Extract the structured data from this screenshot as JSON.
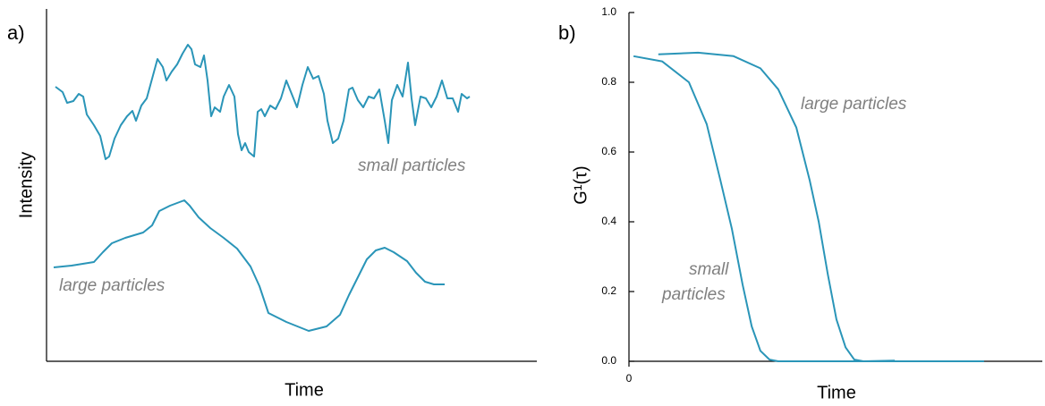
{
  "chart_data": [
    {
      "type": "line",
      "panel_label": "a)",
      "x_label": "Time",
      "y_label": "Intensity",
      "xlim": [
        0,
        548
      ],
      "ylim": [
        0,
        394
      ],
      "series": [
        {
          "name": "small particles",
          "color": "#2a95b8",
          "x": [
            10,
            18,
            23,
            30,
            36,
            41,
            45,
            53,
            60,
            66,
            70,
            76,
            83,
            90,
            96,
            100,
            106,
            112,
            118,
            124,
            130,
            134,
            140,
            146,
            152,
            158,
            162,
            166,
            172,
            176,
            180,
            184,
            188,
            194,
            198,
            204,
            210,
            214,
            218,
            222,
            226,
            232,
            236,
            240,
            244,
            250,
            256,
            262,
            268,
            274,
            280,
            286,
            292,
            298,
            304,
            310,
            314,
            320,
            326,
            332,
            338,
            342,
            348,
            354,
            360,
            366,
            372,
            378,
            382,
            386,
            392,
            398,
            404,
            408,
            412,
            418,
            424,
            430,
            436,
            442,
            448,
            454,
            460,
            464,
            470,
            473
          ],
          "values": [
            307,
            301,
            289,
            291,
            299,
            296,
            276,
            264,
            252,
            226,
            229,
            249,
            264,
            274,
            280,
            269,
            286,
            294,
            316,
            338,
            329,
            314,
            324,
            332,
            344,
            354,
            349,
            332,
            329,
            342,
            314,
            274,
            284,
            279,
            296,
            309,
            296,
            254,
            236,
            244,
            234,
            229,
            279,
            282,
            274,
            286,
            282,
            294,
            314,
            299,
            284,
            309,
            329,
            316,
            319,
            299,
            269,
            244,
            249,
            269,
            304,
            306,
            292,
            284,
            296,
            294,
            304,
            269,
            244,
            292,
            309,
            296,
            334,
            294,
            264,
            296,
            294,
            284,
            296,
            314,
            294,
            294,
            279,
            299,
            294,
            296
          ]
        },
        {
          "name": "large particles",
          "color": "#2a95b8",
          "x": [
            8,
            28,
            53,
            63,
            73,
            88,
            108,
            118,
            126,
            138,
            154,
            160,
            170,
            183,
            198,
            213,
            228,
            238,
            248,
            268,
            293,
            313,
            328,
            338,
            348,
            358,
            368,
            378,
            388,
            403,
            413,
            423,
            433,
            445
          ],
          "values": [
            105,
            107,
            111,
            122,
            132,
            138,
            144,
            152,
            168,
            174,
            180,
            174,
            161,
            149,
            138,
            126,
            106,
            84,
            54,
            44,
            34,
            39,
            52,
            74,
            94,
            114,
            124,
            127,
            122,
            112,
            99,
            89,
            86,
            86
          ]
        }
      ]
    },
    {
      "type": "line",
      "panel_label": "b)",
      "x_label": "Time",
      "y_label": "G¹(τ)",
      "xlim": [
        0,
        100
      ],
      "ylim": [
        0,
        1
      ],
      "xticks": [
        0
      ],
      "yticks": [
        {
          "value": 0,
          "label": "0.0"
        },
        0.2,
        0.4,
        0.6,
        0.8,
        {
          "value": 1,
          "label": "1.0"
        }
      ],
      "series": [
        {
          "name": "large particles",
          "color": "#2a95b8",
          "x": [
            7.1,
            16.7,
            25.3,
            31.8,
            36.1,
            40.5,
            43.7,
            45.9,
            48.1,
            50.2,
            52.4,
            54.5,
            56.7,
            64.3
          ],
          "values": [
            0.88,
            0.885,
            0.875,
            0.84,
            0.78,
            0.67,
            0.52,
            0.4,
            0.25,
            0.12,
            0.04,
            0.005,
            0,
            0.002
          ]
        },
        {
          "name": "small particles",
          "color": "#2a95b8",
          "x": [
            1.1,
            8,
            14.5,
            18.8,
            22.1,
            24.9,
            27.5,
            29.7,
            31.8,
            34,
            36.1,
            85.9
          ],
          "values": [
            0.875,
            0.86,
            0.8,
            0.68,
            0.52,
            0.38,
            0.22,
            0.1,
            0.03,
            0.005,
            0,
            0
          ]
        }
      ],
      "annotations": [
        "large particles",
        "small",
        "particles"
      ]
    }
  ]
}
